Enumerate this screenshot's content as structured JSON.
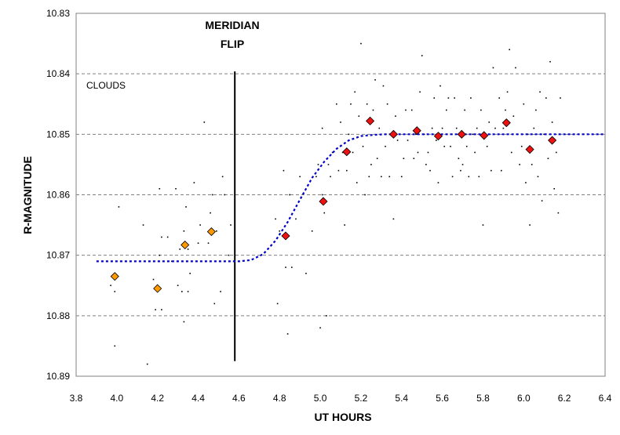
{
  "chart_data": {
    "type": "scatter",
    "title": "",
    "xlabel": "UT HOURS",
    "ylabel": "R-MAGNITUDE",
    "xlim": [
      3.8,
      6.4
    ],
    "ylim": [
      10.83,
      10.89
    ],
    "y_inverted": true,
    "grid": "horizontal dashed",
    "x_ticks": [
      "3.8",
      "4.0",
      "4.2",
      "4.4",
      "4.6",
      "4.8",
      "5.0",
      "5.2",
      "5.4",
      "5.6",
      "5.8",
      "6.0",
      "6.2",
      "6.4"
    ],
    "y_ticks": [
      "10.83",
      "10.84",
      "10.85",
      "10.86",
      "10.87",
      "10.88",
      "10.89"
    ],
    "annotations": {
      "meridian_line1": "MERIDIAN",
      "meridian_line2": "FLIP",
      "clouds": "CLOUDS"
    },
    "meridian_flip": {
      "x": 4.58,
      "y_start": 10.8396,
      "y_end": 10.8875
    },
    "series": [
      {
        "type": "scatter",
        "marker": "dot",
        "color": "#000000",
        "points": [
          [
            3.97,
            10.875
          ],
          [
            3.99,
            10.876
          ],
          [
            3.99,
            10.885
          ],
          [
            4.01,
            10.862
          ],
          [
            4.13,
            10.865
          ],
          [
            4.15,
            10.888
          ],
          [
            4.18,
            10.874
          ],
          [
            4.19,
            10.879
          ],
          [
            4.2,
            10.876
          ],
          [
            4.21,
            10.87
          ],
          [
            4.21,
            10.859
          ],
          [
            4.22,
            10.867
          ],
          [
            4.22,
            10.879
          ],
          [
            4.25,
            10.867
          ],
          [
            4.27,
            10.871
          ],
          [
            4.29,
            10.859
          ],
          [
            4.3,
            10.875
          ],
          [
            4.31,
            10.869
          ],
          [
            4.32,
            10.876
          ],
          [
            4.33,
            10.881
          ],
          [
            4.33,
            10.866
          ],
          [
            4.34,
            10.862
          ],
          [
            4.35,
            10.869
          ],
          [
            4.35,
            10.876
          ],
          [
            4.36,
            10.873
          ],
          [
            4.38,
            10.858
          ],
          [
            4.4,
            10.868
          ],
          [
            4.41,
            10.865
          ],
          [
            4.43,
            10.848
          ],
          [
            4.45,
            10.868
          ],
          [
            4.46,
            10.863
          ],
          [
            4.47,
            10.86
          ],
          [
            4.48,
            10.878
          ],
          [
            4.49,
            10.866
          ],
          [
            4.51,
            10.876
          ],
          [
            4.52,
            10.857
          ],
          [
            4.53,
            10.86
          ],
          [
            4.55,
            10.87
          ],
          [
            4.56,
            10.865
          ],
          [
            4.78,
            10.864
          ],
          [
            4.79,
            10.878
          ],
          [
            4.8,
            10.866
          ],
          [
            4.82,
            10.856
          ],
          [
            4.83,
            10.872
          ],
          [
            4.84,
            10.883
          ],
          [
            4.85,
            10.86
          ],
          [
            4.86,
            10.872
          ],
          [
            4.88,
            10.864
          ],
          [
            4.9,
            10.857
          ],
          [
            4.93,
            10.873
          ],
          [
            4.96,
            10.866
          ],
          [
            4.98,
            10.857
          ],
          [
            4.99,
            10.855
          ],
          [
            5.0,
            10.882
          ],
          [
            5.01,
            10.849
          ],
          [
            5.01,
            10.86
          ],
          [
            5.02,
            10.863
          ],
          [
            5.03,
            10.88
          ],
          [
            5.04,
            10.855
          ],
          [
            5.05,
            10.857
          ],
          [
            5.06,
            10.853
          ],
          [
            5.08,
            10.845
          ],
          [
            5.09,
            10.856
          ],
          [
            5.1,
            10.848
          ],
          [
            5.11,
            10.853
          ],
          [
            5.12,
            10.865
          ],
          [
            5.13,
            10.856
          ],
          [
            5.14,
            10.85
          ],
          [
            5.15,
            10.845
          ],
          [
            5.16,
            10.853
          ],
          [
            5.17,
            10.843
          ],
          [
            5.18,
            10.858
          ],
          [
            5.19,
            10.847
          ],
          [
            5.2,
            10.835
          ],
          [
            5.21,
            10.852
          ],
          [
            5.22,
            10.86
          ],
          [
            5.23,
            10.845
          ],
          [
            5.24,
            10.857
          ],
          [
            5.25,
            10.855
          ],
          [
            5.26,
            10.846
          ],
          [
            5.27,
            10.841
          ],
          [
            5.28,
            10.854
          ],
          [
            5.29,
            10.849
          ],
          [
            5.3,
            10.857
          ],
          [
            5.31,
            10.842
          ],
          [
            5.32,
            10.852
          ],
          [
            5.33,
            10.845
          ],
          [
            5.34,
            10.857
          ],
          [
            5.35,
            10.85
          ],
          [
            5.36,
            10.864
          ],
          [
            5.37,
            10.847
          ],
          [
            5.38,
            10.851
          ],
          [
            5.4,
            10.857
          ],
          [
            5.41,
            10.854
          ],
          [
            5.42,
            10.846
          ],
          [
            5.43,
            10.851
          ],
          [
            5.45,
            10.846
          ],
          [
            5.46,
            10.854
          ],
          [
            5.47,
            10.85
          ],
          [
            5.48,
            10.853
          ],
          [
            5.49,
            10.843
          ],
          [
            5.5,
            10.837
          ],
          [
            5.51,
            10.85
          ],
          [
            5.52,
            10.855
          ],
          [
            5.53,
            10.853
          ],
          [
            5.54,
            10.856
          ],
          [
            5.55,
            10.849
          ],
          [
            5.56,
            10.844
          ],
          [
            5.57,
            10.851
          ],
          [
            5.58,
            10.858
          ],
          [
            5.59,
            10.842
          ],
          [
            5.6,
            10.849
          ],
          [
            5.61,
            10.852
          ],
          [
            5.62,
            10.846
          ],
          [
            5.63,
            10.844
          ],
          [
            5.64,
            10.852
          ],
          [
            5.65,
            10.857
          ],
          [
            5.66,
            10.844
          ],
          [
            5.67,
            10.849
          ],
          [
            5.68,
            10.854
          ],
          [
            5.69,
            10.856
          ],
          [
            5.7,
            10.855
          ],
          [
            5.71,
            10.846
          ],
          [
            5.72,
            10.852
          ],
          [
            5.73,
            10.857
          ],
          [
            5.74,
            10.844
          ],
          [
            5.75,
            10.85
          ],
          [
            5.76,
            10.853
          ],
          [
            5.77,
            10.849
          ],
          [
            5.78,
            10.857
          ],
          [
            5.79,
            10.846
          ],
          [
            5.8,
            10.865
          ],
          [
            5.82,
            10.852
          ],
          [
            5.83,
            10.848
          ],
          [
            5.84,
            10.856
          ],
          [
            5.85,
            10.839
          ],
          [
            5.86,
            10.849
          ],
          [
            5.88,
            10.844
          ],
          [
            5.89,
            10.856
          ],
          [
            5.9,
            10.849
          ],
          [
            5.91,
            10.846
          ],
          [
            5.92,
            10.843
          ],
          [
            5.93,
            10.836
          ],
          [
            5.94,
            10.853
          ],
          [
            5.95,
            10.847
          ],
          [
            5.96,
            10.839
          ],
          [
            5.97,
            10.85
          ],
          [
            5.98,
            10.855
          ],
          [
            5.99,
            10.852
          ],
          [
            6.0,
            10.845
          ],
          [
            6.01,
            10.858
          ],
          [
            6.02,
            10.85
          ],
          [
            6.03,
            10.865
          ],
          [
            6.04,
            10.855
          ],
          [
            6.05,
            10.849
          ],
          [
            6.06,
            10.846
          ],
          [
            6.07,
            10.857
          ],
          [
            6.08,
            10.843
          ],
          [
            6.09,
            10.861
          ],
          [
            6.1,
            10.85
          ],
          [
            6.11,
            10.844
          ],
          [
            6.12,
            10.854
          ],
          [
            6.13,
            10.838
          ],
          [
            6.14,
            10.848
          ],
          [
            6.15,
            10.859
          ],
          [
            6.16,
            10.853
          ],
          [
            6.17,
            10.863
          ],
          [
            6.18,
            10.844
          ]
        ]
      },
      {
        "type": "scatter",
        "marker": "diamond",
        "color": "#FF9900",
        "points": [
          [
            3.99,
            10.8735
          ],
          [
            4.2,
            10.8755
          ],
          [
            4.335,
            10.8683
          ],
          [
            4.465,
            10.8661
          ]
        ]
      },
      {
        "type": "scatter",
        "marker": "diamond",
        "color": "#EE1111",
        "points": [
          [
            4.83,
            10.8668
          ],
          [
            5.015,
            10.8611
          ],
          [
            5.13,
            10.8529
          ],
          [
            5.245,
            10.8478
          ],
          [
            5.36,
            10.85
          ],
          [
            5.475,
            10.8494
          ],
          [
            5.58,
            10.8503
          ],
          [
            5.695,
            10.85
          ],
          [
            5.805,
            10.8502
          ],
          [
            5.915,
            10.8481
          ],
          [
            6.03,
            10.8525
          ],
          [
            6.14,
            10.851
          ]
        ]
      },
      {
        "type": "line",
        "style": "dotted",
        "color": "#0000CC",
        "points": [
          [
            3.9,
            10.871
          ],
          [
            4.6,
            10.871
          ],
          [
            4.66,
            10.8708
          ],
          [
            4.72,
            10.8698
          ],
          [
            4.78,
            10.8676
          ],
          [
            4.84,
            10.8645
          ],
          [
            4.9,
            10.8608
          ],
          [
            4.96,
            10.8572
          ],
          [
            5.02,
            10.8545
          ],
          [
            5.08,
            10.8524
          ],
          [
            5.14,
            10.851
          ],
          [
            5.2,
            10.8503
          ],
          [
            5.26,
            10.8501
          ],
          [
            5.32,
            10.85
          ],
          [
            6.4,
            10.85
          ]
        ]
      }
    ]
  }
}
